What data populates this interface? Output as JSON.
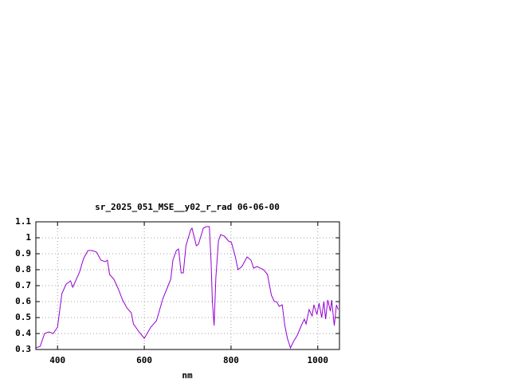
{
  "chart_data": {
    "type": "line",
    "title": "sr_2025_051_MSE__y02_r_rad 06-06-00",
    "x_label": "nm",
    "xlim": [
      350,
      1050
    ],
    "ylim": [
      0.3,
      1.1
    ],
    "xticks": [
      400,
      600,
      800,
      1000
    ],
    "yticks": [
      0.3,
      0.4,
      0.5,
      0.6,
      0.7,
      0.8,
      0.9,
      1,
      1.1
    ],
    "grid": true,
    "series": [
      {
        "color": "#9400d3",
        "x": [
          350,
          360,
          370,
          380,
          390,
          400,
          410,
          420,
          430,
          435,
          450,
          460,
          470,
          480,
          490,
          500,
          510,
          515,
          520,
          530,
          540,
          550,
          560,
          570,
          575,
          588,
          600,
          615,
          628,
          643,
          655,
          661,
          666,
          674,
          679,
          685,
          690,
          696,
          707,
          710,
          720,
          725,
          736,
          743,
          750,
          754,
          757,
          761,
          765,
          771,
          776,
          785,
          794,
          801,
          810,
          816,
          825,
          837,
          846,
          852,
          860,
          875,
          884,
          893,
          900,
          905,
          911,
          918,
          924,
          930,
          937,
          944,
          953,
          962,
          969,
          973,
          980,
          987,
          991,
          998,
          1003,
          1009,
          1014,
          1018,
          1023,
          1029,
          1032,
          1038,
          1043,
          1047
        ],
        "values": [
          0.31,
          0.32,
          0.4,
          0.41,
          0.4,
          0.44,
          0.65,
          0.71,
          0.73,
          0.69,
          0.78,
          0.87,
          0.92,
          0.92,
          0.91,
          0.86,
          0.85,
          0.86,
          0.77,
          0.74,
          0.68,
          0.61,
          0.56,
          0.53,
          0.46,
          0.41,
          0.37,
          0.44,
          0.48,
          0.62,
          0.7,
          0.74,
          0.86,
          0.92,
          0.93,
          0.78,
          0.78,
          0.95,
          1.05,
          1.06,
          0.95,
          0.96,
          1.06,
          1.07,
          1.07,
          0.85,
          0.6,
          0.45,
          0.75,
          0.98,
          1.02,
          1.01,
          0.98,
          0.97,
          0.88,
          0.8,
          0.82,
          0.88,
          0.86,
          0.81,
          0.82,
          0.8,
          0.77,
          0.64,
          0.6,
          0.6,
          0.57,
          0.58,
          0.45,
          0.37,
          0.31,
          0.35,
          0.39,
          0.45,
          0.49,
          0.46,
          0.55,
          0.51,
          0.58,
          0.52,
          0.59,
          0.5,
          0.6,
          0.49,
          0.61,
          0.54,
          0.61,
          0.45,
          0.58,
          0.55
        ]
      }
    ]
  }
}
